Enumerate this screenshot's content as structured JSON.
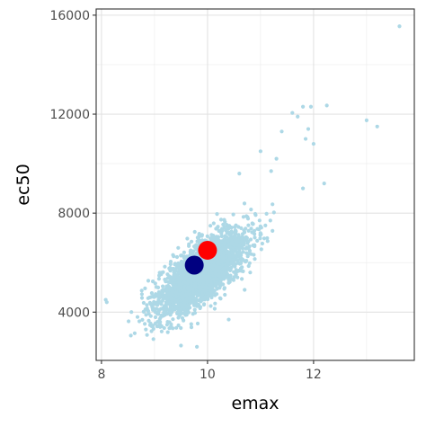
{
  "chart_data": {
    "type": "scatter",
    "xlabel": "emax",
    "ylabel": "ec50",
    "xlim": [
      7.9,
      13.9
    ],
    "ylim": [
      2050,
      16250
    ],
    "x_ticks": [
      8,
      10,
      12
    ],
    "x_tick_labels": [
      "8",
      "10",
      "12"
    ],
    "y_ticks": [
      4000,
      8000,
      12000,
      16000
    ],
    "y_tick_labels": [
      "4000",
      "8000",
      "12000",
      "16000"
    ],
    "grid": true,
    "legend": "none",
    "point_color": "#add8e6",
    "cloud": {
      "n": 2600,
      "center": [
        9.9,
        5600
      ],
      "sd": [
        0.42,
        850
      ],
      "correlation": 0.72,
      "note_points": "simulated dense cloud representing posterior draws"
    },
    "outliers": [
      {
        "x": 13.62,
        "y": 15550
      },
      {
        "x": 13.0,
        "y": 11750
      },
      {
        "x": 13.2,
        "y": 11500
      },
      {
        "x": 12.25,
        "y": 12350
      },
      {
        "x": 11.95,
        "y": 12300
      },
      {
        "x": 11.8,
        "y": 12300
      },
      {
        "x": 11.7,
        "y": 11900
      },
      {
        "x": 11.6,
        "y": 12050
      },
      {
        "x": 11.4,
        "y": 11300
      },
      {
        "x": 11.9,
        "y": 11400
      },
      {
        "x": 12.0,
        "y": 10800
      },
      {
        "x": 11.85,
        "y": 11000
      },
      {
        "x": 12.2,
        "y": 9200
      },
      {
        "x": 11.3,
        "y": 10200
      },
      {
        "x": 11.0,
        "y": 10500
      },
      {
        "x": 11.8,
        "y": 9000
      },
      {
        "x": 11.2,
        "y": 9700
      },
      {
        "x": 8.08,
        "y": 4500
      },
      {
        "x": 8.1,
        "y": 4400
      },
      {
        "x": 9.5,
        "y": 2650
      },
      {
        "x": 9.8,
        "y": 2600
      },
      {
        "x": 10.7,
        "y": 4900
      },
      {
        "x": 10.4,
        "y": 3700
      },
      {
        "x": 10.6,
        "y": 9600
      }
    ],
    "highlight_points": [
      {
        "x": 9.75,
        "y": 5900,
        "color": "#000080"
      },
      {
        "x": 10.0,
        "y": 6500,
        "color": "#ff0000"
      }
    ]
  }
}
